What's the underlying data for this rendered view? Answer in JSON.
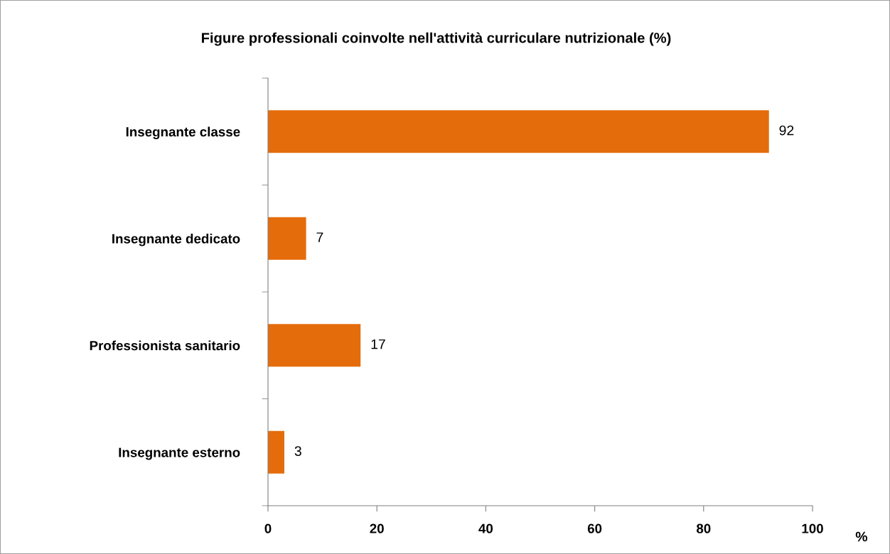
{
  "chart_data": {
    "type": "bar",
    "orientation": "horizontal",
    "title": "Figure professionali coinvolte nell'attività curriculare nutrizionale (%)",
    "xlabel": "%",
    "categories": [
      "Insegnante classe",
      "Insegnante dedicato",
      "Professionista sanitario",
      "Insegnante esterno"
    ],
    "values": [
      92,
      7,
      17,
      3
    ],
    "color": "#e46c0a",
    "xlim": [
      0,
      100
    ],
    "xticks": [
      0,
      20,
      40,
      60,
      80,
      100
    ],
    "data_labels": true,
    "grid": false
  }
}
